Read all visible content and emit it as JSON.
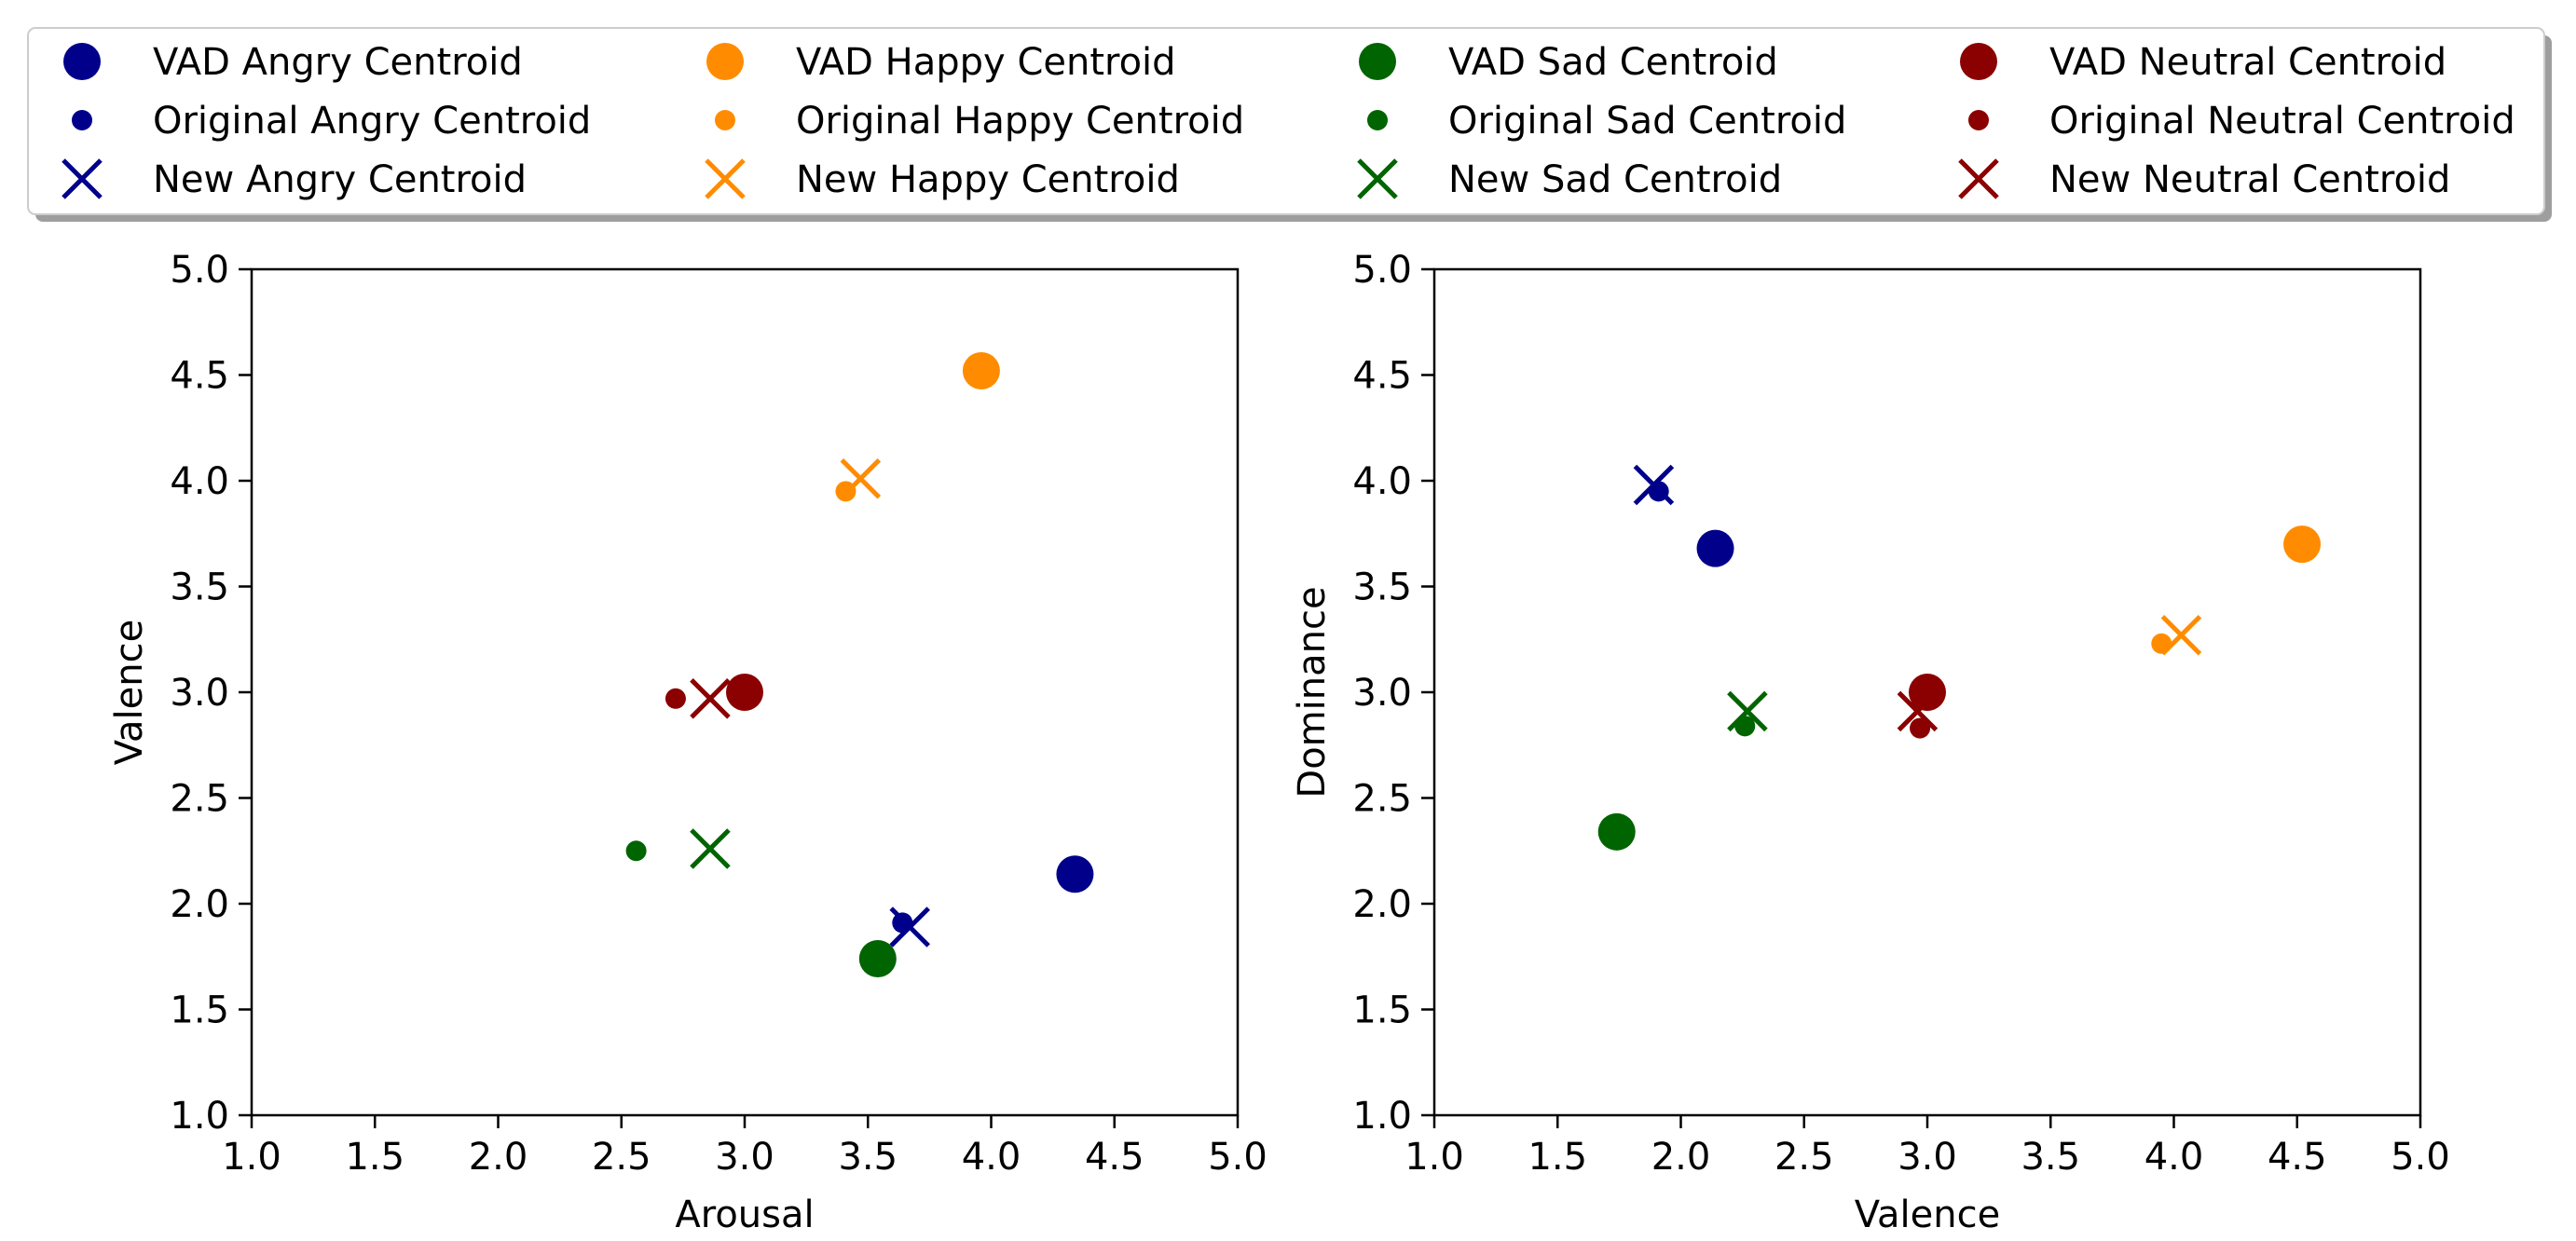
{
  "legend": {
    "placement": "top, outside plots, 4 columns",
    "entries": [
      {
        "label": "VAD Angry Centroid",
        "marker": "large-circle",
        "color": "#00008b"
      },
      {
        "label": "Original Angry Centroid",
        "marker": "small-circle",
        "color": "#00008b"
      },
      {
        "label": "New Angry Centroid",
        "marker": "x",
        "color": "#00008b"
      },
      {
        "label": "VAD Happy Centroid",
        "marker": "large-circle",
        "color": "#ff8c00"
      },
      {
        "label": "Original Happy Centroid",
        "marker": "small-circle",
        "color": "#ff8c00"
      },
      {
        "label": "New Happy Centroid",
        "marker": "x",
        "color": "#ff8c00"
      },
      {
        "label": "VAD Sad Centroid",
        "marker": "large-circle",
        "color": "#006400"
      },
      {
        "label": "Original Sad Centroid",
        "marker": "small-circle",
        "color": "#006400"
      },
      {
        "label": "New Sad Centroid",
        "marker": "x",
        "color": "#006400"
      },
      {
        "label": "VAD Neutral Centroid",
        "marker": "large-circle",
        "color": "#8b0000"
      },
      {
        "label": "Original Neutral Centroid",
        "marker": "small-circle",
        "color": "#8b0000"
      },
      {
        "label": "New Neutral Centroid",
        "marker": "x",
        "color": "#8b0000"
      }
    ]
  },
  "chart_data": [
    {
      "type": "scatter",
      "title": "",
      "xlabel": "Arousal",
      "ylabel": "Valence",
      "xlim": [
        1.0,
        5.0
      ],
      "ylim": [
        1.0,
        5.0
      ],
      "xticks": [
        "1.0",
        "1.5",
        "2.0",
        "2.5",
        "3.0",
        "3.5",
        "4.0",
        "4.5",
        "5.0"
      ],
      "yticks": [
        "1.0",
        "1.5",
        "2.0",
        "2.5",
        "3.0",
        "3.5",
        "4.0",
        "4.5",
        "5.0"
      ],
      "grid": false,
      "series": [
        {
          "name": "VAD Angry Centroid",
          "marker": "large-circle",
          "color": "#00008b",
          "x": [
            4.34
          ],
          "y": [
            2.14
          ]
        },
        {
          "name": "Original Angry Centroid",
          "marker": "small-circle",
          "color": "#00008b",
          "x": [
            3.64
          ],
          "y": [
            1.91
          ]
        },
        {
          "name": "New Angry Centroid",
          "marker": "x",
          "color": "#00008b",
          "x": [
            3.67
          ],
          "y": [
            1.89
          ]
        },
        {
          "name": "VAD Happy Centroid",
          "marker": "large-circle",
          "color": "#ff8c00",
          "x": [
            3.96
          ],
          "y": [
            4.52
          ]
        },
        {
          "name": "Original Happy Centroid",
          "marker": "small-circle",
          "color": "#ff8c00",
          "x": [
            3.41
          ],
          "y": [
            3.95
          ]
        },
        {
          "name": "New Happy Centroid",
          "marker": "x",
          "color": "#ff8c00",
          "x": [
            3.47
          ],
          "y": [
            4.01
          ]
        },
        {
          "name": "VAD Sad Centroid",
          "marker": "large-circle",
          "color": "#006400",
          "x": [
            3.54
          ],
          "y": [
            1.74
          ]
        },
        {
          "name": "Original Sad Centroid",
          "marker": "small-circle",
          "color": "#006400",
          "x": [
            2.56
          ],
          "y": [
            2.25
          ]
        },
        {
          "name": "New Sad Centroid",
          "marker": "x",
          "color": "#006400",
          "x": [
            2.86
          ],
          "y": [
            2.26
          ]
        },
        {
          "name": "VAD Neutral Centroid",
          "marker": "large-circle",
          "color": "#8b0000",
          "x": [
            3.0
          ],
          "y": [
            3.0
          ]
        },
        {
          "name": "Original Neutral Centroid",
          "marker": "small-circle",
          "color": "#8b0000",
          "x": [
            2.72
          ],
          "y": [
            2.97
          ]
        },
        {
          "name": "New Neutral Centroid",
          "marker": "x",
          "color": "#8b0000",
          "x": [
            2.86
          ],
          "y": [
            2.97
          ]
        }
      ]
    },
    {
      "type": "scatter",
      "title": "",
      "xlabel": "Valence",
      "ylabel": "Dominance",
      "xlim": [
        1.0,
        5.0
      ],
      "ylim": [
        1.0,
        5.0
      ],
      "xticks": [
        "1.0",
        "1.5",
        "2.0",
        "2.5",
        "3.0",
        "3.5",
        "4.0",
        "4.5",
        "5.0"
      ],
      "yticks": [
        "1.0",
        "1.5",
        "2.0",
        "2.5",
        "3.0",
        "3.5",
        "4.0",
        "4.5",
        "5.0"
      ],
      "grid": false,
      "series": [
        {
          "name": "VAD Angry Centroid",
          "marker": "large-circle",
          "color": "#00008b",
          "x": [
            2.14
          ],
          "y": [
            3.68
          ]
        },
        {
          "name": "Original Angry Centroid",
          "marker": "small-circle",
          "color": "#00008b",
          "x": [
            1.91
          ],
          "y": [
            3.95
          ]
        },
        {
          "name": "New Angry Centroid",
          "marker": "x",
          "color": "#00008b",
          "x": [
            1.89
          ],
          "y": [
            3.98
          ]
        },
        {
          "name": "VAD Happy Centroid",
          "marker": "large-circle",
          "color": "#ff8c00",
          "x": [
            4.52
          ],
          "y": [
            3.7
          ]
        },
        {
          "name": "Original Happy Centroid",
          "marker": "small-circle",
          "color": "#ff8c00",
          "x": [
            3.95
          ],
          "y": [
            3.23
          ]
        },
        {
          "name": "New Happy Centroid",
          "marker": "x",
          "color": "#ff8c00",
          "x": [
            4.03
          ],
          "y": [
            3.27
          ]
        },
        {
          "name": "VAD Sad Centroid",
          "marker": "large-circle",
          "color": "#006400",
          "x": [
            1.74
          ],
          "y": [
            2.34
          ]
        },
        {
          "name": "Original Sad Centroid",
          "marker": "small-circle",
          "color": "#006400",
          "x": [
            2.26
          ],
          "y": [
            2.84
          ]
        },
        {
          "name": "New Sad Centroid",
          "marker": "x",
          "color": "#006400",
          "x": [
            2.27
          ],
          "y": [
            2.91
          ]
        },
        {
          "name": "VAD Neutral Centroid",
          "marker": "large-circle",
          "color": "#8b0000",
          "x": [
            3.0
          ],
          "y": [
            3.0
          ]
        },
        {
          "name": "Original Neutral Centroid",
          "marker": "small-circle",
          "color": "#8b0000",
          "x": [
            2.97
          ],
          "y": [
            2.83
          ]
        },
        {
          "name": "New Neutral Centroid",
          "marker": "x",
          "color": "#8b0000",
          "x": [
            2.96
          ],
          "y": [
            2.91
          ]
        }
      ]
    }
  ]
}
